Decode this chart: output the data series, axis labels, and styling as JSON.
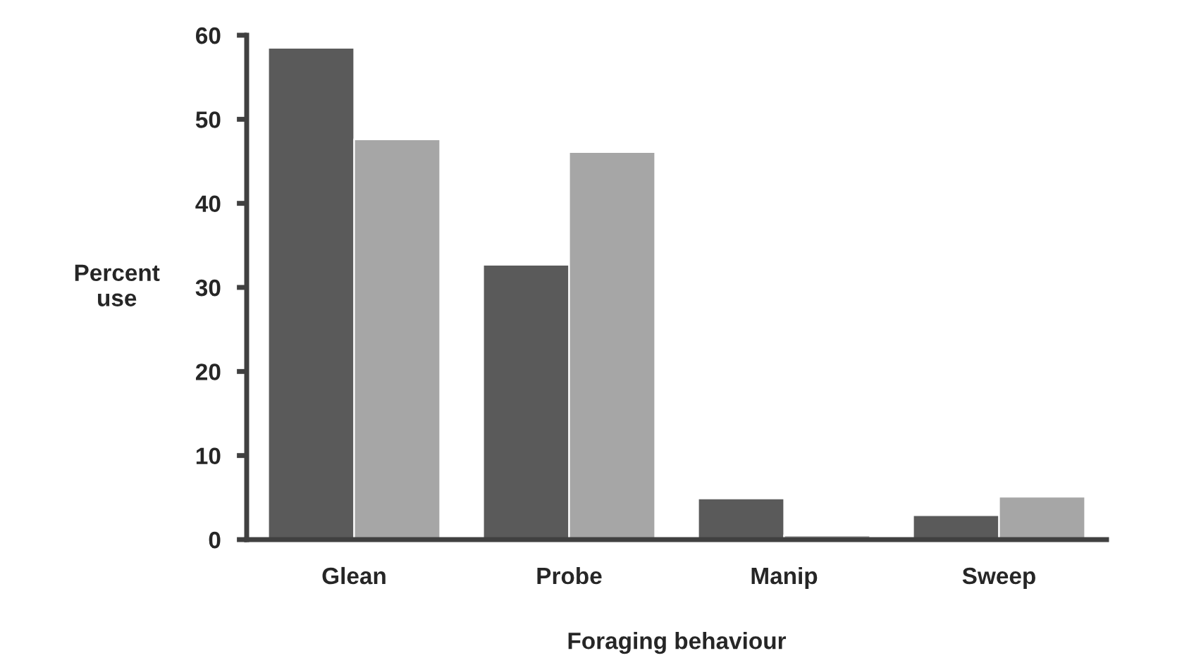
{
  "chart_data": {
    "type": "bar",
    "xlabel": "Foraging behaviour",
    "ylabel": "Percent\nuse",
    "categories": [
      "Glean",
      "Probe",
      "Manip",
      "Sweep"
    ],
    "series": [
      {
        "color": "#5a5a5a",
        "values": [
          58.5,
          32.7,
          4.9,
          2.9
        ]
      },
      {
        "color": "#a6a6a6",
        "values": [
          47.6,
          46.1,
          0.5,
          5.1
        ]
      }
    ],
    "ylim": [
      0,
      60
    ],
    "yticks": [
      0,
      10,
      20,
      30,
      40,
      50,
      60
    ],
    "grid": false,
    "legend": false
  }
}
